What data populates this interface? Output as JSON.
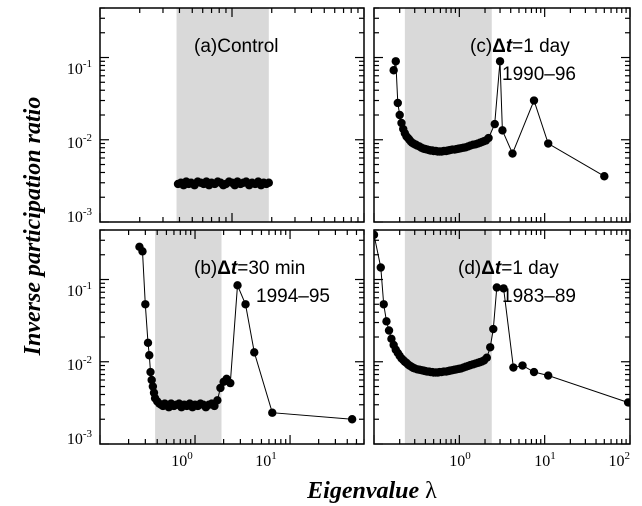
{
  "figure": {
    "xlabel_text": "Eigenvalue",
    "xlabel_symbol": "λ",
    "ylabel": "Inverse participation ratio"
  },
  "x_ticks": [
    {
      "base": "10",
      "exp": "0",
      "value": 1
    },
    {
      "base": "10",
      "exp": "1",
      "value": 10
    },
    {
      "base": "10",
      "exp": "2",
      "value": 100
    }
  ],
  "y_ticks": [
    {
      "base": "10",
      "exp": "-3",
      "value": 0.001
    },
    {
      "base": "10",
      "exp": "-2",
      "value": 0.01
    },
    {
      "base": "10",
      "exp": "-1",
      "value": 0.1
    }
  ],
  "chart_data": [
    {
      "id": "a",
      "type": "scatter",
      "title_tag": "(a)",
      "title_text": "Control",
      "subtitle": "",
      "x_scale": "log",
      "y_scale": "log",
      "xlim": [
        0.1,
        10
      ],
      "ylim": [
        0.001,
        0.4
      ],
      "shaded_band": [
        0.38,
        1.9
      ],
      "connect": false,
      "x": [
        0.39,
        0.41,
        0.43,
        0.45,
        0.47,
        0.49,
        0.52,
        0.55,
        0.58,
        0.61,
        0.64,
        0.67,
        0.7,
        0.74,
        0.78,
        0.82,
        0.86,
        0.9,
        0.95,
        1.0,
        1.05,
        1.1,
        1.16,
        1.22,
        1.28,
        1.35,
        1.42,
        1.5,
        1.58,
        1.66,
        1.74,
        1.82,
        1.9
      ],
      "y": [
        0.0029,
        0.003,
        0.0028,
        0.0031,
        0.0029,
        0.003,
        0.0028,
        0.0031,
        0.003,
        0.0029,
        0.0031,
        0.0028,
        0.003,
        0.0029,
        0.0031,
        0.003,
        0.0028,
        0.0029,
        0.0031,
        0.003,
        0.0028,
        0.0031,
        0.0029,
        0.003,
        0.0031,
        0.0028,
        0.003,
        0.0029,
        0.0031,
        0.0028,
        0.003,
        0.0029,
        0.003
      ]
    },
    {
      "id": "b",
      "type": "line",
      "title_tag": "(b)",
      "title_text": "=30 min",
      "subtitle": "1994–95",
      "x_scale": "log",
      "y_scale": "log",
      "xlim": [
        0.1,
        60
      ],
      "ylim": [
        0.001,
        0.4
      ],
      "shaded_band": [
        0.38,
        1.9
      ],
      "connect": true,
      "x": [
        0.26,
        0.28,
        0.3,
        0.32,
        0.33,
        0.34,
        0.35,
        0.36,
        0.37,
        0.38,
        0.4,
        0.42,
        0.44,
        0.46,
        0.48,
        0.5,
        0.53,
        0.56,
        0.6,
        0.64,
        0.68,
        0.72,
        0.77,
        0.82,
        0.88,
        0.94,
        1.0,
        1.07,
        1.14,
        1.22,
        1.3,
        1.4,
        1.5,
        1.6,
        1.72,
        1.85,
        2.0,
        2.15,
        2.35,
        2.8,
        3.4,
        4.2,
        6.5,
        45
      ],
      "y": [
        0.25,
        0.22,
        0.05,
        0.017,
        0.012,
        0.0075,
        0.006,
        0.005,
        0.0042,
        0.0036,
        0.0033,
        0.0031,
        0.003,
        0.0029,
        0.0031,
        0.003,
        0.0028,
        0.0031,
        0.0029,
        0.003,
        0.0031,
        0.0028,
        0.003,
        0.0029,
        0.0031,
        0.0028,
        0.003,
        0.0029,
        0.0031,
        0.003,
        0.0028,
        0.003,
        0.0031,
        0.0029,
        0.0034,
        0.0048,
        0.0057,
        0.0062,
        0.0055,
        0.085,
        0.05,
        0.013,
        0.0024,
        0.002
      ]
    },
    {
      "id": "c",
      "type": "line",
      "title_tag": "(c)",
      "title_text": "=1 day",
      "subtitle": "1990–96",
      "x_scale": "log",
      "y_scale": "log",
      "xlim": [
        0.1,
        100
      ],
      "ylim": [
        0.001,
        0.4
      ],
      "shaded_band": [
        0.23,
        2.4
      ],
      "connect": true,
      "x": [
        0.17,
        0.18,
        0.19,
        0.2,
        0.21,
        0.22,
        0.23,
        0.24,
        0.25,
        0.26,
        0.27,
        0.28,
        0.29,
        0.3,
        0.31,
        0.32,
        0.34,
        0.36,
        0.38,
        0.4,
        0.42,
        0.44,
        0.46,
        0.48,
        0.5,
        0.53,
        0.56,
        0.59,
        0.62,
        0.66,
        0.7,
        0.74,
        0.78,
        0.83,
        0.88,
        0.93,
        0.99,
        1.05,
        1.12,
        1.19,
        1.27,
        1.35,
        1.45,
        1.55,
        1.65,
        1.75,
        1.85,
        1.95,
        2.05,
        2.2,
        2.6,
        3.0,
        3.2,
        4.2,
        7.5,
        11,
        50
      ],
      "y": [
        0.07,
        0.09,
        0.028,
        0.02,
        0.016,
        0.0135,
        0.012,
        0.011,
        0.0105,
        0.01,
        0.0095,
        0.0092,
        0.009,
        0.0088,
        0.0087,
        0.0085,
        0.0083,
        0.008,
        0.0078,
        0.0077,
        0.0076,
        0.0075,
        0.0074,
        0.0074,
        0.0073,
        0.0073,
        0.0072,
        0.0072,
        0.0072,
        0.0073,
        0.0073,
        0.0074,
        0.0075,
        0.0076,
        0.0076,
        0.0077,
        0.0078,
        0.0079,
        0.008,
        0.0081,
        0.0083,
        0.0085,
        0.0087,
        0.0088,
        0.009,
        0.0092,
        0.0094,
        0.0096,
        0.0098,
        0.0105,
        0.0155,
        0.09,
        0.013,
        0.0068,
        0.03,
        0.009,
        0.0036
      ]
    },
    {
      "id": "d",
      "type": "line",
      "title_tag": "(d)",
      "title_text": "=1 day",
      "subtitle": "1983–89",
      "x_scale": "log",
      "y_scale": "log",
      "xlim": [
        0.1,
        100
      ],
      "ylim": [
        0.001,
        0.4
      ],
      "shaded_band": [
        0.23,
        2.4
      ],
      "connect": true,
      "x": [
        0.1,
        0.12,
        0.13,
        0.14,
        0.15,
        0.16,
        0.17,
        0.18,
        0.19,
        0.2,
        0.21,
        0.22,
        0.23,
        0.24,
        0.25,
        0.26,
        0.27,
        0.28,
        0.29,
        0.3,
        0.32,
        0.34,
        0.36,
        0.38,
        0.4,
        0.42,
        0.44,
        0.46,
        0.48,
        0.5,
        0.53,
        0.56,
        0.59,
        0.62,
        0.66,
        0.7,
        0.74,
        0.78,
        0.83,
        0.88,
        0.93,
        0.99,
        1.05,
        1.12,
        1.19,
        1.27,
        1.35,
        1.45,
        1.55,
        1.65,
        1.75,
        1.85,
        1.95,
        2.1,
        2.3,
        2.5,
        2.75,
        3.3,
        4.3,
        5.5,
        7.5,
        11,
        95
      ],
      "y": [
        0.35,
        0.14,
        0.05,
        0.031,
        0.024,
        0.019,
        0.016,
        0.014,
        0.0128,
        0.0118,
        0.011,
        0.0105,
        0.01,
        0.0097,
        0.0093,
        0.009,
        0.0088,
        0.0086,
        0.0084,
        0.0083,
        0.0081,
        0.008,
        0.0079,
        0.0078,
        0.0077,
        0.0076,
        0.0076,
        0.0075,
        0.0075,
        0.0074,
        0.0074,
        0.0074,
        0.0075,
        0.0075,
        0.0076,
        0.0076,
        0.0077,
        0.0078,
        0.0079,
        0.008,
        0.0081,
        0.0082,
        0.0083,
        0.0085,
        0.0087,
        0.0089,
        0.0091,
        0.0093,
        0.0095,
        0.0097,
        0.0099,
        0.0101,
        0.0104,
        0.0112,
        0.015,
        0.025,
        0.08,
        0.078,
        0.0085,
        0.009,
        0.0075,
        0.0068,
        0.0032
      ]
    }
  ]
}
